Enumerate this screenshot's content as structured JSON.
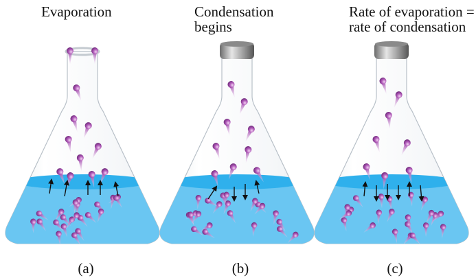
{
  "panels": [
    {
      "title_lines": [
        "Evaporation"
      ],
      "label": "(a)"
    },
    {
      "title_lines": [
        "Condensation",
        "begins"
      ],
      "label": "(b)"
    },
    {
      "title_lines": [
        "Rate of evaporation =",
        "rate of condensation"
      ],
      "label": "(c)"
    }
  ]
}
